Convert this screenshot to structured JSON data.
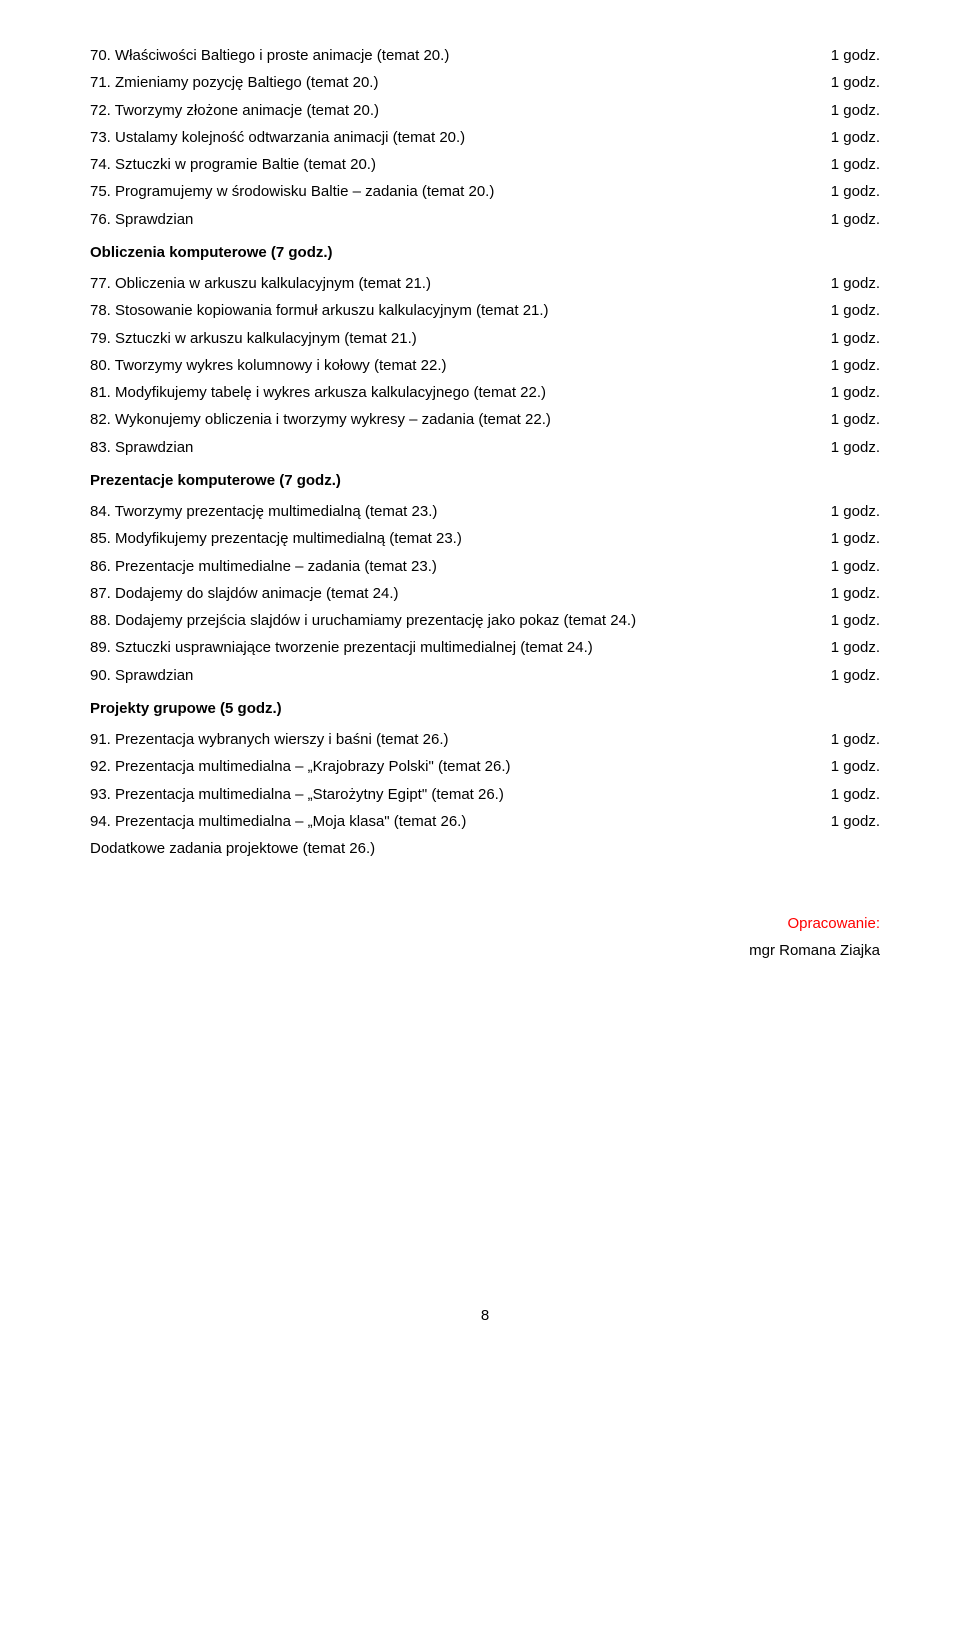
{
  "duration_label": "1 godz.",
  "sections": [
    {
      "items": [
        {
          "n": "70.",
          "text": "Właściwości Baltiego i proste animacje (temat 20.)",
          "dur": true
        },
        {
          "n": "71.",
          "text": "Zmieniamy pozycję Baltiego (temat 20.)",
          "dur": true
        },
        {
          "n": "72.",
          "text": "Tworzymy złożone animacje (temat 20.)",
          "dur": true
        },
        {
          "n": "73.",
          "text": "Ustalamy kolejność odtwarzania animacji (temat 20.)",
          "dur": true
        },
        {
          "n": "74.",
          "text": "Sztuczki w programie Baltie (temat 20.)",
          "dur": true
        },
        {
          "n": "75.",
          "text": "Programujemy w środowisku Baltie – zadania (temat 20.)",
          "dur": true
        },
        {
          "n": "76.",
          "text": "Sprawdzian",
          "dur": true
        }
      ]
    },
    {
      "heading": "Obliczenia komputerowe (7 godz.)",
      "items": [
        {
          "n": "77.",
          "text": "Obliczenia w arkuszu kalkulacyjnym (temat 21.)",
          "dur": true
        },
        {
          "n": "78.",
          "text": "Stosowanie kopiowania formuł  arkuszu kalkulacyjnym (temat 21.)",
          "dur": true
        },
        {
          "n": "79.",
          "text": "Sztuczki w arkuszu kalkulacyjnym (temat 21.)",
          "dur": true
        },
        {
          "n": "80.",
          "text": "Tworzymy wykres kolumnowy i kołowy (temat 22.)",
          "dur": true
        },
        {
          "n": "81.",
          "text": "Modyfikujemy tabelę i wykres arkusza kalkulacyjnego (temat 22.)",
          "dur": true
        },
        {
          "n": "82.",
          "text": "Wykonujemy obliczenia i tworzymy wykresy – zadania (temat 22.)",
          "dur": true
        },
        {
          "n": "83.",
          "text": "Sprawdzian",
          "dur": true
        }
      ]
    },
    {
      "heading": "Prezentacje komputerowe (7 godz.)",
      "items": [
        {
          "n": "84.",
          "text": "Tworzymy prezentację multimedialną (temat 23.)",
          "dur": true
        },
        {
          "n": "85.",
          "text": "Modyfikujemy prezentację multimedialną (temat 23.)",
          "dur": true
        },
        {
          "n": "86.",
          "text": "Prezentacje multimedialne – zadania (temat 23.)",
          "dur": true
        },
        {
          "n": "87.",
          "text": "Dodajemy do slajdów animacje (temat 24.)",
          "dur": true
        },
        {
          "n": "88.",
          "text": "Dodajemy przejścia slajdów i uruchamiamy prezentację jako pokaz (temat 24.)",
          "dur": true
        },
        {
          "n": "89.",
          "text": "Sztuczki usprawniające tworzenie prezentacji multimedialnej (temat 24.)",
          "dur": true
        },
        {
          "n": "90.",
          "text": "Sprawdzian",
          "dur": true
        }
      ]
    },
    {
      "heading": "Projekty grupowe (5 godz.)",
      "items": [
        {
          "n": "91.",
          "text": " Prezentacja wybranych wierszy i baśni (temat 26.)",
          "dur": true
        },
        {
          "n": "92.",
          "text": " Prezentacja multimedialna – „Krajobrazy Polski\" (temat 26.)",
          "dur": true
        },
        {
          "n": "93.",
          "text": " Prezentacja multimedialna – „Starożytny Egipt\" (temat 26.)",
          "dur": true
        },
        {
          "n": "94.",
          "text": " Prezentacja multimedialna – „Moja klasa\" (temat 26.)",
          "dur": true
        }
      ],
      "footer": "Dodatkowe zadania projektowe (temat 26.)"
    }
  ],
  "signature": {
    "line1": "Opracowanie:",
    "line2": "mgr Romana Ziajka"
  },
  "page_number": "8"
}
